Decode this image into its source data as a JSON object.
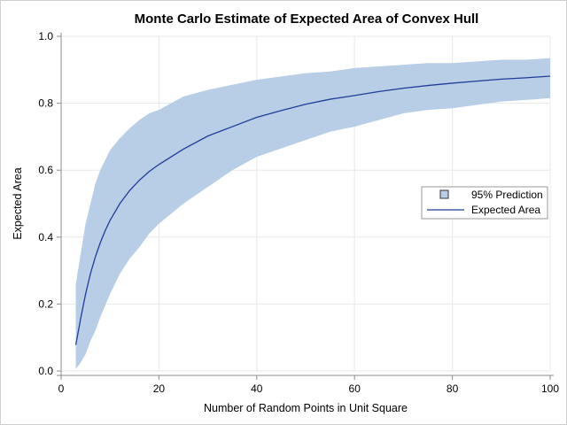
{
  "chart_data": {
    "type": "area",
    "title": "Monte Carlo Estimate of Expected Area of Convex Hull",
    "xlabel": "Number of Random Points in Unit Square",
    "ylabel": "Expected Area",
    "xlim": [
      0,
      100
    ],
    "ylim": [
      0.0,
      1.0
    ],
    "xticks": [
      0,
      20,
      40,
      60,
      80,
      100
    ],
    "yticks": [
      0.0,
      0.2,
      0.4,
      0.6,
      0.8,
      1.0
    ],
    "xtick_labels": [
      "0",
      "20",
      "40",
      "60",
      "80",
      "100"
    ],
    "ytick_labels": [
      "0.0",
      "0.2",
      "0.4",
      "0.6",
      "0.8",
      "1.0"
    ],
    "grid": true,
    "legend_position": "right",
    "colors": {
      "band": "#b8cde6",
      "line": "#1f3d99",
      "grid": "#e8e8e8",
      "axis": "#8c8c8c"
    },
    "series": [
      {
        "name": "95% Prediction",
        "kind": "band",
        "x": [
          3,
          4,
          5,
          6,
          7,
          8,
          9,
          10,
          12,
          14,
          16,
          18,
          20,
          25,
          30,
          35,
          40,
          45,
          50,
          55,
          60,
          65,
          70,
          75,
          80,
          85,
          90,
          95,
          100
        ],
        "lower": [
          0.005,
          0.025,
          0.05,
          0.09,
          0.12,
          0.16,
          0.195,
          0.23,
          0.29,
          0.335,
          0.37,
          0.41,
          0.44,
          0.5,
          0.55,
          0.6,
          0.64,
          0.665,
          0.69,
          0.715,
          0.73,
          0.75,
          0.77,
          0.78,
          0.785,
          0.795,
          0.805,
          0.81,
          0.815
        ],
        "upper": [
          0.26,
          0.35,
          0.44,
          0.5,
          0.56,
          0.6,
          0.63,
          0.66,
          0.695,
          0.725,
          0.75,
          0.77,
          0.78,
          0.82,
          0.84,
          0.855,
          0.87,
          0.88,
          0.89,
          0.895,
          0.905,
          0.91,
          0.915,
          0.92,
          0.92,
          0.925,
          0.93,
          0.93,
          0.935
        ]
      },
      {
        "name": "Expected Area",
        "kind": "line",
        "x": [
          3,
          4,
          5,
          6,
          7,
          8,
          9,
          10,
          12,
          14,
          16,
          18,
          20,
          25,
          30,
          35,
          40,
          45,
          50,
          55,
          60,
          65,
          70,
          75,
          80,
          85,
          90,
          95,
          100
        ],
        "values": [
          0.078,
          0.157,
          0.23,
          0.291,
          0.341,
          0.383,
          0.419,
          0.45,
          0.5,
          0.539,
          0.57,
          0.596,
          0.617,
          0.663,
          0.702,
          0.73,
          0.758,
          0.778,
          0.797,
          0.812,
          0.823,
          0.835,
          0.845,
          0.853,
          0.86,
          0.866,
          0.872,
          0.876,
          0.881
        ]
      }
    ]
  }
}
